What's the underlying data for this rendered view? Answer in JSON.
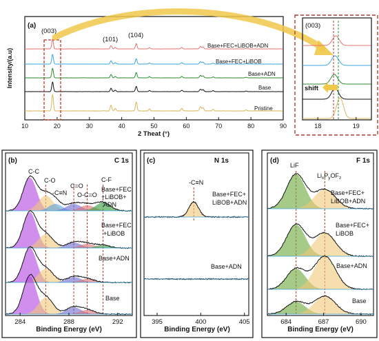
{
  "chart_data": [
    {
      "panel": "(a)",
      "type": "line",
      "xlabel": "2 Theat (°)",
      "ylabel": "Intensity/(a.u)",
      "xlim": [
        10,
        90
      ],
      "xticks": [
        10,
        20,
        30,
        40,
        50,
        60,
        70,
        80,
        90
      ],
      "peaks": [
        {
          "label": "(003)",
          "x": 18.6
        },
        {
          "label": "(101)",
          "x": 36.7
        },
        {
          "label": "(104)",
          "x": 44.5
        }
      ],
      "series": [
        {
          "name": "Base+FEC+LiBOB+ADN",
          "color": "#e57373"
        },
        {
          "name": "Base+FEC+LiBOB",
          "color": "#3aa8e0"
        },
        {
          "name": "Base+ADN",
          "color": "#2e8b2e"
        },
        {
          "name": "Base",
          "color": "#111111"
        },
        {
          "name": "Pristine",
          "color": "#d9b65a"
        }
      ]
    },
    {
      "panel": "inset",
      "type": "line",
      "title": "(003)",
      "xlim": [
        17.6,
        19.4
      ],
      "xticks": [
        18,
        19
      ],
      "annotation": "shift",
      "colors": [
        "#e57373",
        "#3aa8e0",
        "#2e8b2e",
        "#111111",
        "#d9b65a"
      ]
    },
    {
      "panel": "(b)",
      "type": "area",
      "title": "C 1s",
      "xlabel": "Binding Energy (eV)",
      "xlim": [
        282.8,
        293.2
      ],
      "xticks": [
        284,
        288,
        292
      ],
      "components": [
        {
          "label": "C-C",
          "x": 284.8
        },
        {
          "label": "C-O",
          "x": 286.1
        },
        {
          "label": "-C≡N",
          "x": 286.9
        },
        {
          "label": "C=O",
          "x": 288.3
        },
        {
          "label": "O-C=O",
          "x": 289.5
        },
        {
          "label": "C-F",
          "x": 290.7
        }
      ],
      "samples": [
        "Base+FEC +LiBOB+ ADN",
        "Base+FEC +LiBOB",
        "Base+ADN",
        "Base"
      ]
    },
    {
      "panel": "(c)",
      "type": "line",
      "title": "N 1s",
      "xlabel": "Binding Energy (eV)",
      "xlim": [
        393.5,
        405.5
      ],
      "xticks": [
        395,
        400,
        405
      ],
      "components": [
        {
          "label": "-C≡N",
          "x": 399.2
        }
      ],
      "samples": [
        "Base+FEC+ LiBOB+ADN",
        "Base+ADN"
      ]
    },
    {
      "panel": "(d)",
      "type": "area",
      "title": "F 1s",
      "xlabel": "Binding Energy (eV)",
      "xlim": [
        682.5,
        691.0
      ],
      "xticks": [
        684,
        687,
        690
      ],
      "components": [
        {
          "label": "LiF",
          "x": 684.8
        },
        {
          "label": "LixPyOFz",
          "x": 687.0
        }
      ],
      "samples": [
        "Base+FEC+ LiBOB+ADN",
        "Base+FEC+ LiBOB",
        "Base+ADN",
        "Base"
      ]
    }
  ],
  "labels": {
    "a_panel": "(a)",
    "a_ylabel": "Intensity/(a.u)",
    "a_xlabel": "2 Theat (°)",
    "a_peak_003": "(003)",
    "a_peak_101": "(101)",
    "a_peak_104": "(104)",
    "a_s1": "Base+FEC+LiBOB+ADN",
    "a_s2": "Base+FEC+LiBOB",
    "a_s3": "Base+ADN",
    "a_s4": "Base",
    "a_s5": "Pristine",
    "inset_title": "(003)",
    "inset_shift": "shift",
    "b_panel": "(b)",
    "b_title": "C 1s",
    "b_cc": "C-C",
    "b_co": "C-O",
    "b_cn": "-C≡N",
    "b_c2o": "C=O",
    "b_oco": "O-C=O",
    "b_cf": "C-F",
    "b_s1a": "Base+FEC",
    "b_s1b": "+LiBOB+",
    "b_s1c": "ADN",
    "b_s2a": "Base+FEC",
    "b_s2b": "+LiBOB",
    "b_s3": "Base+ADN",
    "b_s4": "Base",
    "c_panel": "(c)",
    "c_title": "N 1s",
    "c_cn": "-C≡N",
    "c_s1a": "Base+FEC+",
    "c_s1b": "LiBOB+ADN",
    "c_s2": "Base+ADN",
    "d_panel": "(d)",
    "d_title": "F 1s",
    "d_lif": "LiF",
    "d_lipo_a": "Li",
    "d_lipo_b": "x",
    "d_lipo_c": "P",
    "d_lipo_d": "y",
    "d_lipo_e": "OF",
    "d_lipo_f": "z",
    "d_s1a": "Base+FEC+",
    "d_s1b": "LiBOB+ADN",
    "d_s2a": "Base+FEC+",
    "d_s2b": "LiBOB",
    "d_s3": "Base+ADN",
    "d_s4": "Base",
    "be_label": "Binding Energy (eV)"
  }
}
